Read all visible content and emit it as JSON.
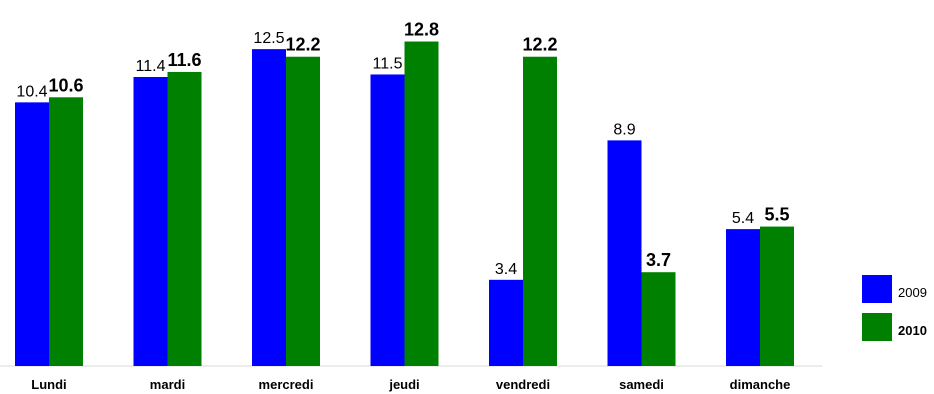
{
  "chart_data": {
    "type": "bar",
    "categories": [
      "Lundi",
      "mardi",
      "mercredi",
      "jeudi",
      "vendredi",
      "samedi",
      "dimanche"
    ],
    "series": [
      {
        "name": "2009",
        "color": "#0000ff",
        "values": [
          10.4,
          11.4,
          12.5,
          11.5,
          3.4,
          8.9,
          5.4
        ],
        "labels": [
          "10.4",
          "11.4",
          "12.5",
          "11.5",
          "3.4",
          "8.9",
          "5.4"
        ]
      },
      {
        "name": "2010",
        "color": "#008000",
        "values": [
          10.6,
          11.6,
          12.2,
          12.8,
          12.2,
          3.7,
          5.5
        ],
        "labels": [
          "10.6",
          "11.6",
          "12.2",
          "12.8",
          "12.2",
          "3.7",
          "5.5"
        ]
      }
    ],
    "ylim": [
      0,
      14
    ],
    "grid": false,
    "legend": "right"
  }
}
